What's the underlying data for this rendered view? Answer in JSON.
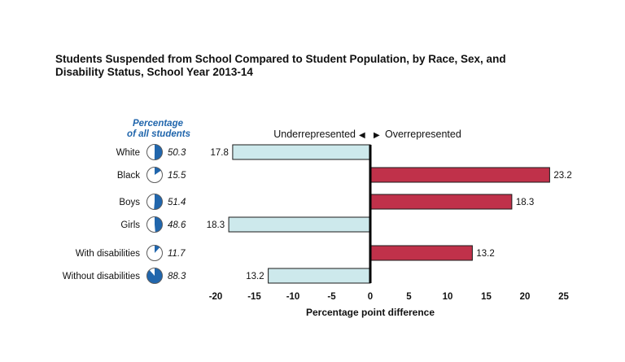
{
  "chart_data": {
    "type": "bar",
    "orientation": "horizontal-diverging",
    "title_lines": [
      "Students Suspended from School Compared to Student Population, by Race, Sex, and",
      "Disability Status, School Year 2013-14"
    ],
    "percentage_header": [
      "Percentage",
      "of all students"
    ],
    "direction_labels": {
      "left": "Underrepresented",
      "right": "Overrepresented"
    },
    "xlabel": "Percentage point difference",
    "xlim": [
      -20,
      25
    ],
    "xticks": [
      -20,
      -15,
      -10,
      -5,
      0,
      5,
      10,
      15,
      20,
      25
    ],
    "rows": [
      {
        "label": "White",
        "share": 50.3,
        "share_text": "50.3",
        "diff": -17.8,
        "diff_text": "17.8"
      },
      {
        "label": "Black",
        "share": 15.5,
        "share_text": "15.5",
        "diff": 23.2,
        "diff_text": "23.2"
      },
      {
        "label": "Boys",
        "share": 51.4,
        "share_text": "51.4",
        "diff": 18.3,
        "diff_text": "18.3"
      },
      {
        "label": "Girls",
        "share": 48.6,
        "share_text": "48.6",
        "diff": -18.3,
        "diff_text": "18.3"
      },
      {
        "label": "With disabilities",
        "share": 11.7,
        "share_text": "11.7",
        "diff": 13.2,
        "diff_text": "13.2"
      },
      {
        "label": "Without disabilities",
        "share": 88.3,
        "share_text": "88.3",
        "diff": -13.2,
        "diff_text": "13.2"
      }
    ],
    "colors": {
      "negative_fill": "#cde9ec",
      "positive_fill": "#c0314a",
      "bar_stroke": "#1a1a1a",
      "pie_fill": "#2166ac",
      "pie_bg": "#ffffff",
      "axis": "#000000"
    }
  }
}
